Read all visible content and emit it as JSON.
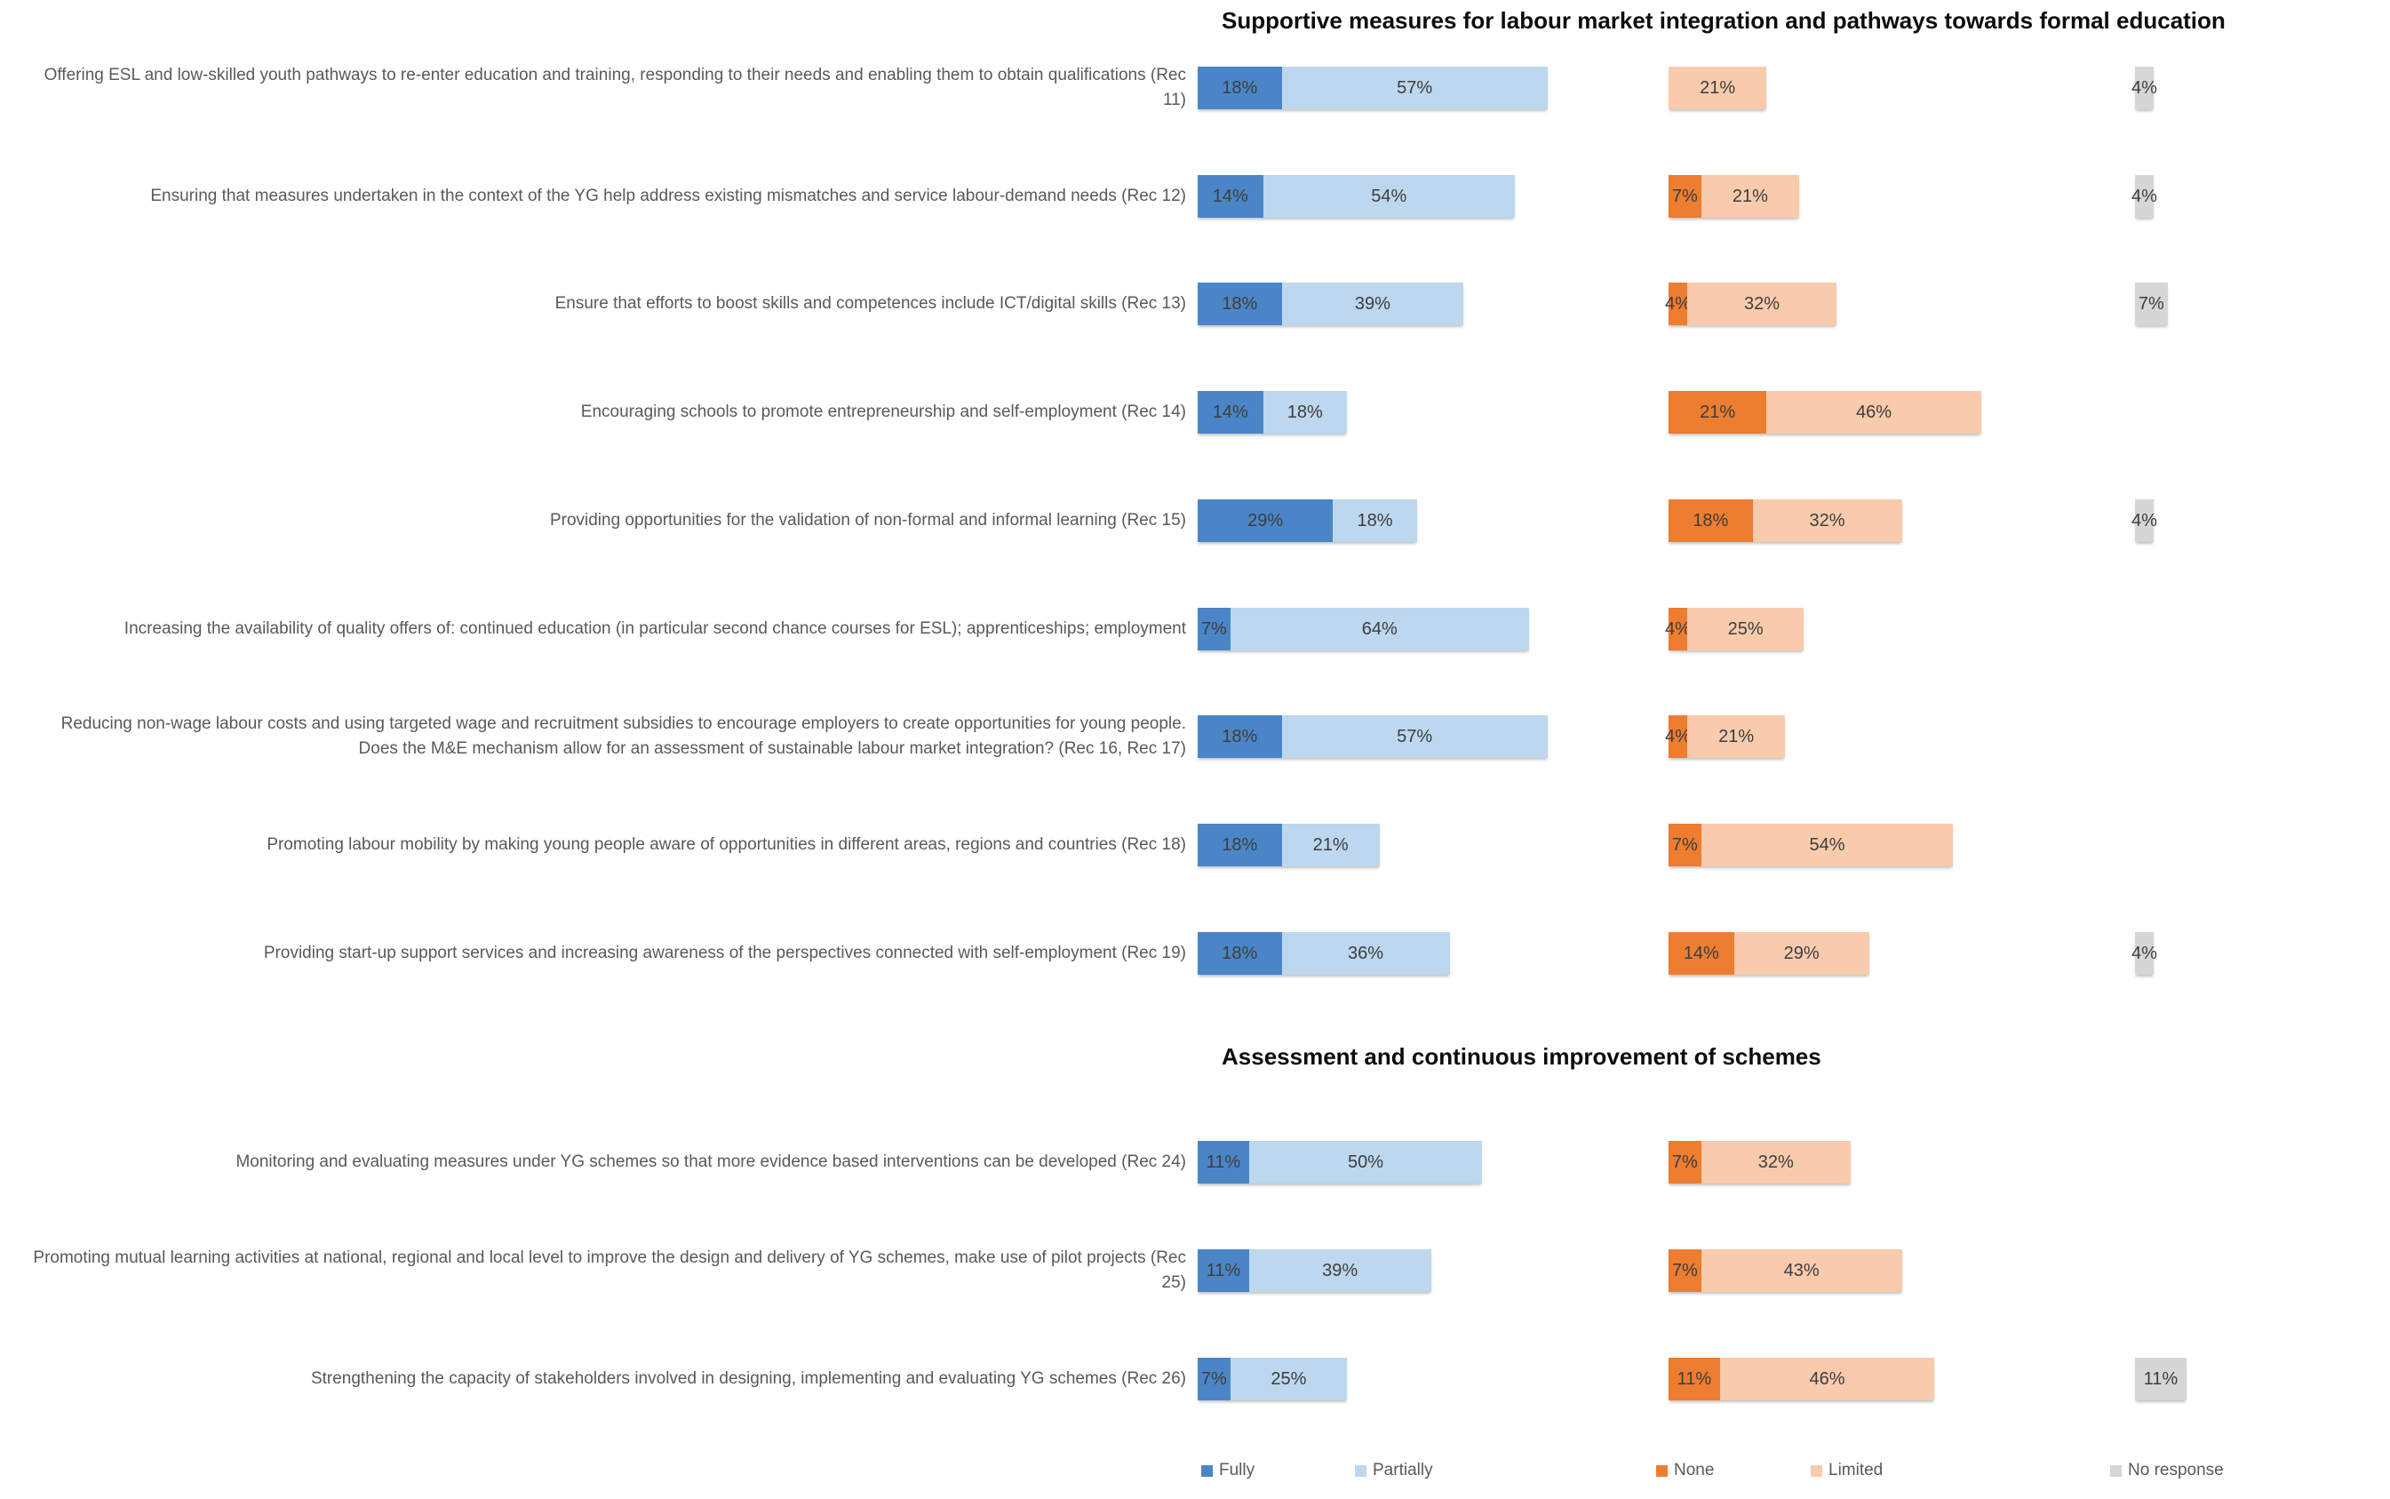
{
  "chart_data": {
    "type": "bar",
    "orientation": "horizontal",
    "stacked": true,
    "unit": "%",
    "grid": false,
    "axes_hidden": true,
    "legend_position": "bottom",
    "panels": [
      "fully+partially",
      "none+limited",
      "no_response"
    ],
    "legend": [
      {
        "key": "fully",
        "label": "Fully",
        "color": "#4A86C7"
      },
      {
        "key": "partially",
        "label": "Partially",
        "color": "#BDD7EE"
      },
      {
        "key": "none",
        "label": "None",
        "color": "#ED7D31"
      },
      {
        "key": "limited",
        "label": "Limited",
        "color": "#F8CBAD"
      },
      {
        "key": "no_response",
        "label": "No response",
        "color": "#D6D6D6"
      }
    ],
    "sections": [
      {
        "title": "Supportive measures for labour market integration and pathways towards formal education",
        "rows": [
          {
            "label": "Offering ESL and low-skilled youth pathways to re-enter education and training, responding to their needs and enabling them to obtain qualifications (Rec 11)",
            "values": {
              "fully": 18,
              "partially": 57,
              "none": 0,
              "limited": 21,
              "no_response": 4
            }
          },
          {
            "label": "Ensuring that measures undertaken in the context of the YG help address existing mismatches and service labour-demand needs (Rec 12)",
            "values": {
              "fully": 14,
              "partially": 54,
              "none": 7,
              "limited": 21,
              "no_response": 4
            }
          },
          {
            "label": "Ensure that efforts to boost skills and competences include ICT/digital skills (Rec 13)",
            "values": {
              "fully": 18,
              "partially": 39,
              "none": 4,
              "limited": 32,
              "no_response": 7
            }
          },
          {
            "label": "Encouraging schools to promote entrepreneurship and self-employment (Rec 14)",
            "values": {
              "fully": 14,
              "partially": 18,
              "none": 21,
              "limited": 46,
              "no_response": 0
            }
          },
          {
            "label": "Providing opportunities for the validation of non-formal and informal learning (Rec 15)",
            "values": {
              "fully": 29,
              "partially": 18,
              "none": 18,
              "limited": 32,
              "no_response": 4
            }
          },
          {
            "label": "Increasing the availability of quality offers of: continued education (in particular second chance courses for ESL); apprenticeships; employment",
            "values": {
              "fully": 7,
              "partially": 64,
              "none": 4,
              "limited": 25,
              "no_response": 0
            }
          },
          {
            "label": "Reducing non-wage labour costs and using targeted wage and recruitment subsidies to encourage employers to create opportunities for young people. Does the M&E mechanism allow for an assessment of sustainable labour market integration? (Rec 16, Rec 17)",
            "values": {
              "fully": 18,
              "partially": 57,
              "none": 4,
              "limited": 21,
              "no_response": 0
            }
          },
          {
            "label": "Promoting labour mobility by making young people aware of opportunities in different areas, regions and countries (Rec 18)",
            "values": {
              "fully": 18,
              "partially": 21,
              "none": 7,
              "limited": 54,
              "no_response": 0
            }
          },
          {
            "label": "Providing start-up support services and increasing awareness of the perspectives connected with self-employment (Rec 19)",
            "values": {
              "fully": 18,
              "partially": 36,
              "none": 14,
              "limited": 29,
              "no_response": 4
            }
          }
        ]
      },
      {
        "title": "Assessment and continuous improvement of schemes",
        "rows": [
          {
            "label": "Monitoring and evaluating measures under YG schemes so that more evidence based interventions can be developed (Rec 24)",
            "values": {
              "fully": 11,
              "partially": 50,
              "none": 7,
              "limited": 32,
              "no_response": 0
            }
          },
          {
            "label": "Promoting mutual learning activities at national, regional and local level to improve the design and delivery of YG schemes, make use of pilot projects (Rec 25)",
            "values": {
              "fully": 11,
              "partially": 39,
              "none": 7,
              "limited": 43,
              "no_response": 0
            }
          },
          {
            "label": "Strengthening the capacity of stakeholders involved in designing, implementing and evaluating YG schemes (Rec 26)",
            "values": {
              "fully": 7,
              "partially": 25,
              "none": 11,
              "limited": 46,
              "no_response": 11
            }
          }
        ]
      }
    ]
  }
}
